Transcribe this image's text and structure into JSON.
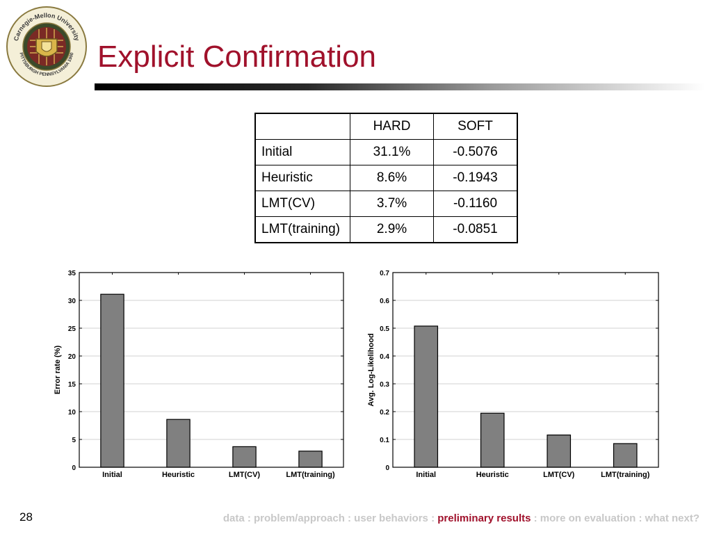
{
  "slide": {
    "title": "Explicit Confirmation",
    "page_number": "28",
    "colors": {
      "title": "#a0112b",
      "bar": "#808080",
      "footer_inactive": "#c8c8c8",
      "footer_active": "#a0112b"
    }
  },
  "logo": {
    "icon": "university-seal",
    "text_top": "Carnegie-Mellon University",
    "text_bottom": "PITTSBURGH PENNSYLVANIA 1900"
  },
  "table": {
    "headers": [
      "",
      "HARD",
      "SOFT"
    ],
    "rows": [
      {
        "label": "Initial",
        "hard": "31.1%",
        "soft": "-0.5076"
      },
      {
        "label": "Heuristic",
        "hard": "8.6%",
        "soft": "-0.1943"
      },
      {
        "label": "LMT(CV)",
        "hard": "3.7%",
        "soft": "-0.1160"
      },
      {
        "label": "LMT(training)",
        "hard": "2.9%",
        "soft": "-0.0851"
      }
    ]
  },
  "chart_data": [
    {
      "type": "bar",
      "categories": [
        "Initial",
        "Heuristic",
        "LMT(CV)",
        "LMT(training)"
      ],
      "values": [
        31.1,
        8.6,
        3.7,
        2.9
      ],
      "ylabel": "Error rate (%)",
      "xlabel": "",
      "ylim": [
        0,
        35
      ],
      "yticks": [
        0,
        5,
        10,
        15,
        20,
        25,
        30,
        35
      ],
      "ytick_labels": [
        "0",
        "5",
        "10",
        "15",
        "20",
        "25",
        "30",
        "35"
      ],
      "grid": "horizontal"
    },
    {
      "type": "bar",
      "categories": [
        "Initial",
        "Heuristic",
        "LMT(CV)",
        "LMT(training)"
      ],
      "values": [
        0.5076,
        0.1943,
        0.116,
        0.0851
      ],
      "ylabel": "Avg. Log-Likelihood",
      "xlabel": "",
      "ylim": [
        0,
        0.7
      ],
      "yticks": [
        0,
        0.1,
        0.2,
        0.3,
        0.4,
        0.5,
        0.6,
        0.7
      ],
      "ytick_labels": [
        "0",
        "0.1",
        "0.2",
        "0.3",
        "0.4",
        "0.5",
        "0.6",
        "0.7"
      ],
      "grid": "horizontal"
    }
  ],
  "footer": {
    "before": "data : problem/approach : user behaviors : ",
    "active": "preliminary results",
    "after": " : more on evaluation : what next?"
  }
}
